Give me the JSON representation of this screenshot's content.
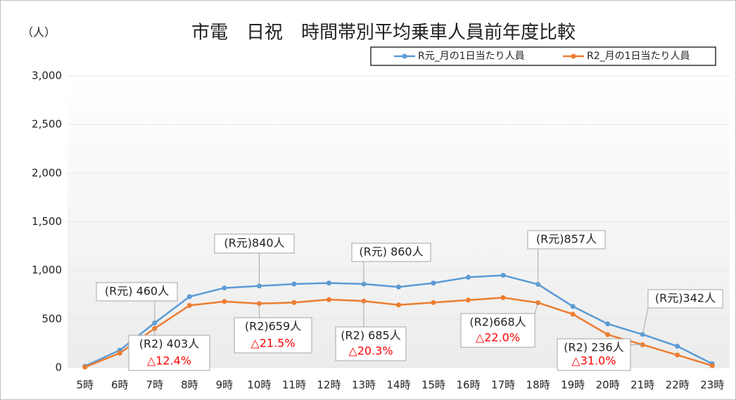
{
  "chart_data": {
    "type": "line",
    "title": "市電　日祝　時間帯別平均乗車人員前年度比較",
    "y_label": "（人）",
    "categories": [
      "5時",
      "6時",
      "7時",
      "8時",
      "9時",
      "10時",
      "11時",
      "12時",
      "13時",
      "14時",
      "15時",
      "16時",
      "17時",
      "18時",
      "19時",
      "20時",
      "21時",
      "22時",
      "23時"
    ],
    "series": [
      {
        "name": "R元_月の1日当たり人員",
        "color": "#5b9bd5",
        "values": [
          15,
          180,
          460,
          730,
          820,
          840,
          860,
          870,
          860,
          830,
          870,
          930,
          950,
          857,
          630,
          450,
          342,
          220,
          40
        ]
      },
      {
        "name": "R2_月の1日当たり人員",
        "color": "#ed7d31",
        "values": [
          5,
          150,
          403,
          640,
          680,
          659,
          670,
          700,
          685,
          645,
          670,
          695,
          720,
          668,
          550,
          340,
          236,
          130,
          20
        ]
      }
    ],
    "ylim": [
      0,
      3000
    ],
    "yticks": [
      0,
      500,
      {
        "value": 1000,
        "label": "1,000"
      },
      {
        "value": 1500,
        "label": "1,500"
      },
      {
        "value": 2000,
        "label": "2,000"
      },
      {
        "value": 2500,
        "label": "2,500"
      },
      {
        "value": 3000,
        "label": "3,000"
      }
    ],
    "legend": "top-right",
    "annotations": [
      {
        "text": "(R元) 460人"
      },
      {
        "text": "(R元)840人"
      },
      {
        "text": "(R元) 860人"
      },
      {
        "text": "(R元)857人"
      },
      {
        "text": "(R元)342人"
      },
      {
        "text": "(R2) 403人",
        "change": "△12.4%"
      },
      {
        "text": "(R2)659人",
        "change": "△21.5%"
      },
      {
        "text": "(R2) 685人",
        "change": "△20.3%"
      },
      {
        "text": "(R2)668人",
        "change": "△22.0%"
      },
      {
        "text": "(R2) 236人",
        "change": "△31.0%"
      }
    ]
  }
}
